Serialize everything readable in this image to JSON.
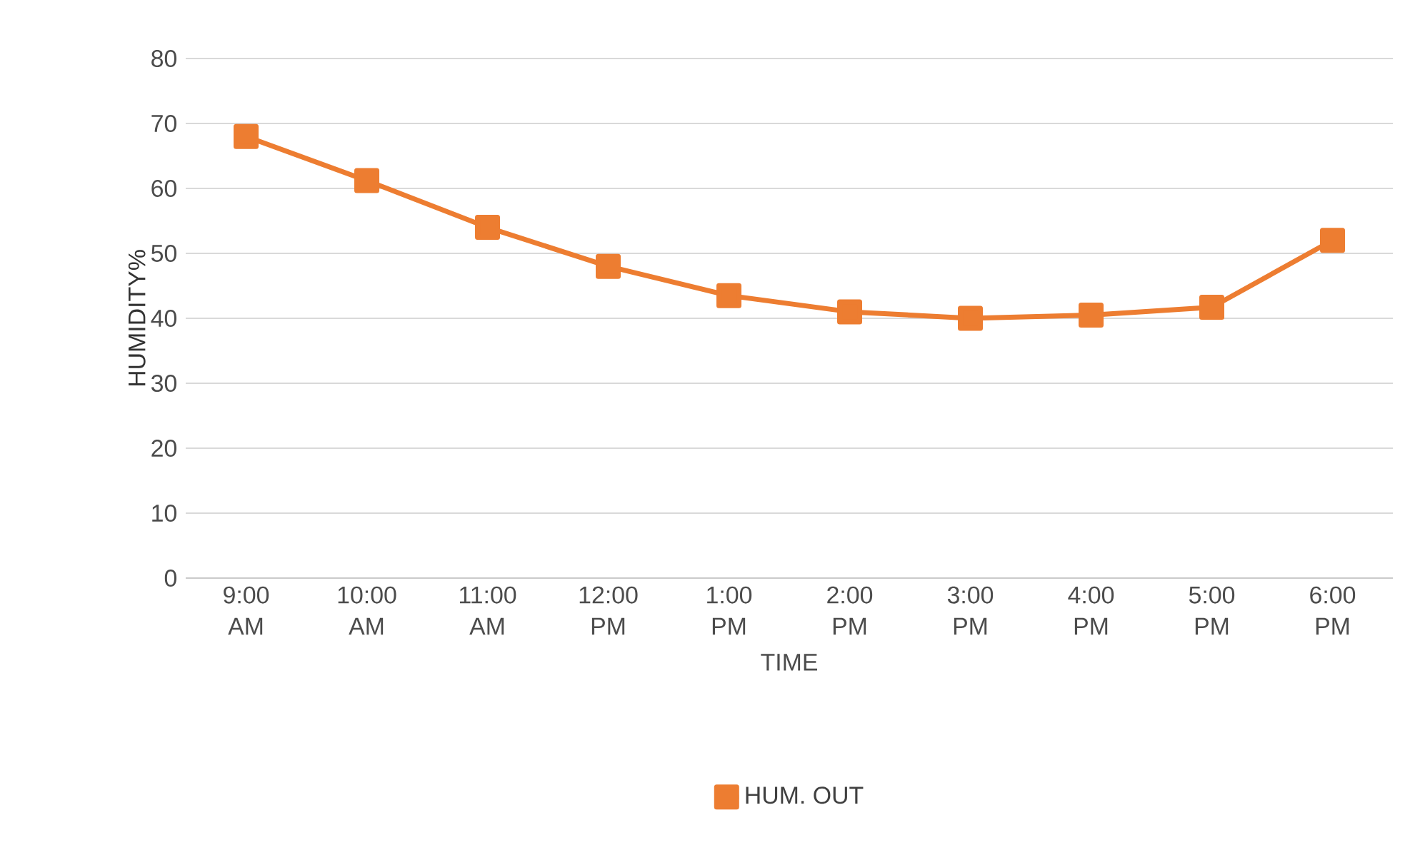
{
  "chart_data": {
    "type": "line",
    "xlabel": "TIME",
    "ylabel": "HUMIDITY%",
    "categories": [
      "9:00 AM",
      "10:00 AM",
      "11:00 AM",
      "12:00 PM",
      "1:00 PM",
      "2:00 PM",
      "3:00 PM",
      "4:00 PM",
      "5:00 PM",
      "6:00 PM"
    ],
    "series": [
      {
        "name": "HUM. OUT",
        "color": "#ed7d31",
        "values": [
          68,
          61.2,
          54,
          48,
          43.5,
          41,
          40,
          40.5,
          41.7,
          52
        ]
      }
    ],
    "ylim": [
      0,
      80
    ],
    "yticks": [
      0,
      10,
      20,
      30,
      40,
      50,
      60,
      70,
      80
    ],
    "grid": "y",
    "legend": "bottom",
    "marker": "square",
    "line_style": "solid"
  }
}
